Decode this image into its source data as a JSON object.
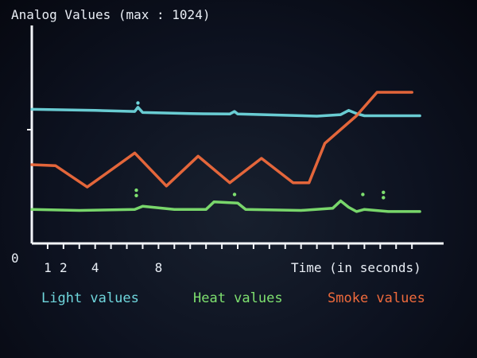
{
  "chart_data": {
    "type": "line",
    "title": "Analog Values (max : 1024)",
    "xlabel": "Time (in seconds)",
    "ylabel": "",
    "ylim": [
      0,
      1024
    ],
    "y_origin_label": "0",
    "x_tick_labels": [
      "1",
      "2",
      "4",
      "8"
    ],
    "x_tick_label_values": [
      1,
      2,
      4,
      8
    ],
    "xlim": [
      0,
      26
    ],
    "grid": false,
    "legend_position": "bottom",
    "series": [
      {
        "name": "Light values",
        "color": "#6fd6dc",
        "x": [
          0,
          4,
          6.5,
          6.7,
          7,
          10,
          12.5,
          12.8,
          13,
          18,
          19.5,
          20,
          20.5,
          21,
          24.5
        ],
        "values": [
          630,
          625,
          620,
          640,
          615,
          610,
          608,
          620,
          608,
          598,
          605,
          625,
          610,
          600,
          600
        ]
      },
      {
        "name": "Heat values",
        "color": "#7ee06f",
        "x": [
          0,
          3,
          6.5,
          7,
          9,
          11,
          11.5,
          13,
          13.5,
          17,
          19,
          19.5,
          20,
          20.5,
          21,
          22.5,
          24.5
        ],
        "values": [
          160,
          155,
          160,
          175,
          160,
          160,
          195,
          190,
          160,
          155,
          165,
          200,
          170,
          150,
          160,
          150,
          150
        ]
      },
      {
        "name": "Smoke values",
        "color": "#ef6a3c",
        "x": [
          0,
          1.5,
          3.5,
          6.5,
          8.5,
          10.5,
          12.5,
          14.5,
          16.5,
          17.5,
          18.5,
          20.5,
          21.8,
          22.3,
          24
        ],
        "values": [
          370,
          365,
          265,
          425,
          270,
          410,
          285,
          400,
          285,
          285,
          470,
          600,
          710,
          710,
          710
        ]
      }
    ],
    "spikes": [
      {
        "series": "Light values",
        "x": 6.7,
        "values": [
          660
        ]
      },
      {
        "series": "Heat values",
        "x": 6.6,
        "values": [
          225,
          250
        ]
      },
      {
        "series": "Heat values",
        "x": 12.8,
        "values": [
          230
        ]
      },
      {
        "series": "Heat values",
        "x": 20.9,
        "values": [
          230
        ]
      },
      {
        "series": "Heat values",
        "x": 22.2,
        "values": [
          215,
          240
        ]
      }
    ]
  }
}
